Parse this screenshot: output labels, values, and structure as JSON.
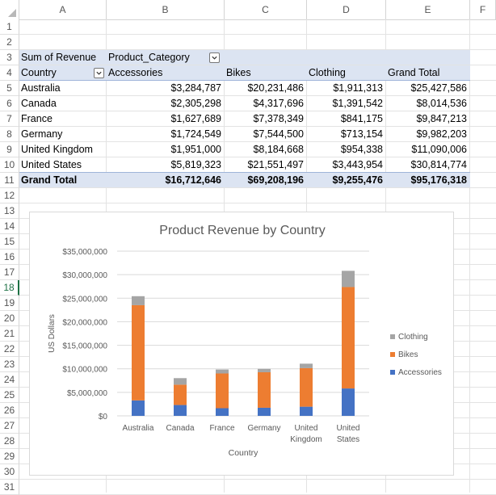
{
  "columns": [
    "A",
    "B",
    "C",
    "D",
    "E",
    "F"
  ],
  "rows": [
    "1",
    "2",
    "3",
    "4",
    "5",
    "6",
    "7",
    "8",
    "9",
    "10",
    "11",
    "12",
    "13",
    "14",
    "15",
    "16",
    "17",
    "18",
    "19",
    "20",
    "21",
    "22",
    "23",
    "24",
    "25",
    "26",
    "27",
    "28",
    "29",
    "30",
    "31"
  ],
  "selected_row": "18",
  "pivot": {
    "values_label": "Sum of Revenue",
    "column_field": "Product_Category",
    "row_field": "Country",
    "col_headers": [
      "Accessories",
      "Bikes",
      "Clothing",
      "Grand Total"
    ],
    "data": [
      {
        "country": "Australia",
        "values": [
          "$3,284,787",
          "$20,231,486",
          "$1,911,313",
          "$25,427,586"
        ]
      },
      {
        "country": "Canada",
        "values": [
          "$2,305,298",
          "$4,317,696",
          "$1,391,542",
          "$8,014,536"
        ]
      },
      {
        "country": "France",
        "values": [
          "$1,627,689",
          "$7,378,349",
          "$841,175",
          "$9,847,213"
        ]
      },
      {
        "country": "Germany",
        "values": [
          "$1,724,549",
          "$7,544,500",
          "$713,154",
          "$9,982,203"
        ]
      },
      {
        "country": "United Kingdom",
        "values": [
          "$1,951,000",
          "$8,184,668",
          "$954,338",
          "$11,090,006"
        ]
      },
      {
        "country": "United States",
        "values": [
          "$5,819,323",
          "$21,551,497",
          "$3,443,954",
          "$30,814,774"
        ]
      }
    ],
    "grand_total_label": "Grand Total",
    "grand_totals": [
      "$16,712,646",
      "$69,208,196",
      "$9,255,476",
      "$95,176,318"
    ]
  },
  "chart_data": {
    "type": "bar",
    "stacked": true,
    "title": "Product Revenue by Country",
    "xlabel": "Country",
    "ylabel": "US Dollars",
    "categories": [
      "Australia",
      "Canada",
      "France",
      "Germany",
      "United Kingdom",
      "United States"
    ],
    "category_lines": [
      [
        "Australia"
      ],
      [
        "Canada"
      ],
      [
        "France"
      ],
      [
        "Germany"
      ],
      [
        "United",
        "Kingdom"
      ],
      [
        "United",
        "States"
      ]
    ],
    "series": [
      {
        "name": "Accessories",
        "color": "#4472c4",
        "values": [
          3284787,
          2305298,
          1627689,
          1724549,
          1951000,
          5819323
        ]
      },
      {
        "name": "Bikes",
        "color": "#ed7d31",
        "values": [
          20231486,
          4317696,
          7378349,
          7544500,
          8184668,
          21551497
        ]
      },
      {
        "name": "Clothing",
        "color": "#a5a5a5",
        "values": [
          1911313,
          1391542,
          841175,
          713154,
          954338,
          3443954
        ]
      }
    ],
    "ylim": [
      0,
      35000000
    ],
    "yticks": [
      0,
      5000000,
      10000000,
      15000000,
      20000000,
      25000000,
      30000000,
      35000000
    ],
    "ytick_labels": [
      "$0",
      "$5,000,000",
      "$10,000,000",
      "$15,000,000",
      "$20,000,000",
      "$25,000,000",
      "$30,000,000",
      "$35,000,000"
    ],
    "grid": true,
    "legend": "right",
    "legend_order": [
      "Clothing",
      "Bikes",
      "Accessories"
    ]
  }
}
